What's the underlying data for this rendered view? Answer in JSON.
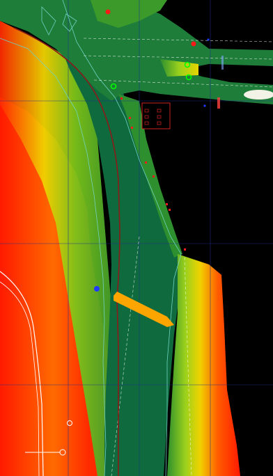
{
  "map": {
    "background_color": "#000000",
    "grid_color": "#1f2f8f",
    "colors": {
      "deep_channel": "#0f6b3e",
      "mid_depth": "#2e8f2e",
      "shallow": "#9bd11c",
      "very_shallow": "#f0d200",
      "shoal_orange": "#ff8c00",
      "dry_red": "#ff1a00",
      "contour_line": "#6fd3c3",
      "track_line": "#8b1a1a",
      "vessel": "#ffa500",
      "waypoint_blue": "#1f3bff",
      "buoy_red": "#ff0000",
      "buoy_green": "#00ff00",
      "shoreline_white": "#ffffff"
    },
    "icons": {
      "vessel": "vessel-icon",
      "position_marker": "position-marker-icon",
      "red_buoy": "red-buoy-icon",
      "green_buoy": "green-buoy-icon",
      "legend_box": "legend-box-icon"
    }
  }
}
